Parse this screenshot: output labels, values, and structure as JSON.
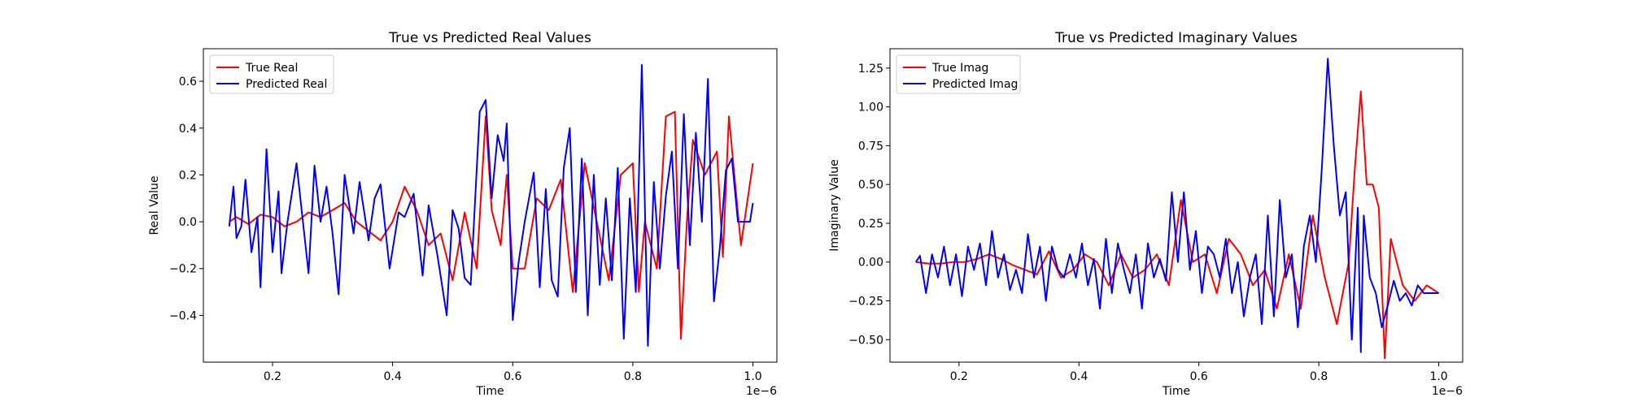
{
  "chart_data": [
    {
      "type": "line",
      "title": "True vs Predicted Real Values",
      "xlabel": "Time",
      "ylabel": "Real Value",
      "x_offset_label": "1e−6",
      "xlim": [
        0.0849,
        1.0399
      ],
      "ylim": [
        -0.5998,
        0.7391
      ],
      "xticks": [
        {
          "v": 0.2,
          "label": "0.2"
        },
        {
          "v": 0.4,
          "label": "0.4"
        },
        {
          "v": 0.6,
          "label": "0.6"
        },
        {
          "v": 0.8,
          "label": "0.8"
        },
        {
          "v": 1.0,
          "label": "1.0"
        }
      ],
      "yticks": [
        {
          "v": -0.4,
          "label": "−0.4"
        },
        {
          "v": -0.2,
          "label": "−0.2"
        },
        {
          "v": 0.0,
          "label": "0.0"
        },
        {
          "v": 0.2,
          "label": "0.2"
        },
        {
          "v": 0.4,
          "label": "0.4"
        },
        {
          "v": 0.6,
          "label": "0.6"
        }
      ],
      "grid": false,
      "legend_position": "upper left",
      "series": [
        {
          "name": "True Real",
          "color": "#ff0000",
          "x": [
            0.128,
            0.14,
            0.16,
            0.18,
            0.2,
            0.22,
            0.24,
            0.26,
            0.28,
            0.3,
            0.32,
            0.34,
            0.36,
            0.38,
            0.4,
            0.42,
            0.44,
            0.46,
            0.48,
            0.5,
            0.52,
            0.54,
            0.555,
            0.565,
            0.58,
            0.59,
            0.6,
            0.62,
            0.64,
            0.66,
            0.68,
            0.7,
            0.72,
            0.74,
            0.76,
            0.78,
            0.8,
            0.81,
            0.82,
            0.84,
            0.855,
            0.87,
            0.88,
            0.89,
            0.9,
            0.92,
            0.94,
            0.95,
            0.96,
            0.98,
            1.0
          ],
          "y": [
            0.0,
            0.02,
            -0.01,
            0.03,
            0.02,
            -0.02,
            0.0,
            0.04,
            0.02,
            0.05,
            0.08,
            0.0,
            -0.04,
            -0.08,
            0.0,
            0.15,
            0.05,
            -0.1,
            -0.05,
            -0.25,
            0.04,
            -0.2,
            0.45,
            0.05,
            -0.1,
            0.2,
            -0.2,
            -0.2,
            0.1,
            0.05,
            0.18,
            -0.3,
            0.25,
            0.0,
            -0.25,
            0.2,
            0.25,
            -0.3,
            0.0,
            -0.2,
            0.45,
            0.47,
            -0.5,
            0.0,
            0.35,
            0.2,
            0.3,
            -0.15,
            0.45,
            -0.1,
            0.25
          ]
        },
        {
          "name": "Predicted Real",
          "color": "#0000ff",
          "x": [
            0.128,
            0.135,
            0.14,
            0.148,
            0.155,
            0.165,
            0.175,
            0.18,
            0.19,
            0.2,
            0.21,
            0.215,
            0.225,
            0.24,
            0.26,
            0.27,
            0.28,
            0.29,
            0.3,
            0.31,
            0.32,
            0.335,
            0.345,
            0.36,
            0.37,
            0.38,
            0.395,
            0.41,
            0.42,
            0.435,
            0.45,
            0.46,
            0.475,
            0.49,
            0.5,
            0.51,
            0.52,
            0.53,
            0.545,
            0.555,
            0.565,
            0.575,
            0.585,
            0.59,
            0.6,
            0.61,
            0.62,
            0.635,
            0.645,
            0.655,
            0.665,
            0.675,
            0.685,
            0.695,
            0.705,
            0.715,
            0.725,
            0.735,
            0.745,
            0.755,
            0.765,
            0.775,
            0.785,
            0.795,
            0.805,
            0.815,
            0.825,
            0.835,
            0.845,
            0.855,
            0.865,
            0.875,
            0.885,
            0.895,
            0.905,
            0.915,
            0.925,
            0.935,
            0.945,
            0.955,
            0.965,
            0.975,
            0.985,
            0.995,
            1.0
          ],
          "y": [
            -0.02,
            0.15,
            -0.07,
            -0.02,
            0.18,
            -0.13,
            0.02,
            -0.28,
            0.31,
            -0.13,
            0.13,
            -0.22,
            0.0,
            0.25,
            -0.22,
            0.24,
            0.0,
            0.15,
            -0.05,
            -0.31,
            0.2,
            -0.05,
            0.17,
            -0.08,
            0.1,
            0.16,
            -0.2,
            0.04,
            0.02,
            0.12,
            -0.23,
            0.07,
            -0.15,
            -0.4,
            0.05,
            -0.03,
            -0.24,
            -0.27,
            0.47,
            0.52,
            0.1,
            0.37,
            0.26,
            0.42,
            -0.42,
            -0.17,
            0.0,
            0.21,
            -0.28,
            0.14,
            -0.25,
            -0.32,
            0.23,
            0.4,
            -0.3,
            0.27,
            -0.4,
            0.2,
            -0.27,
            0.1,
            -0.25,
            0.23,
            -0.5,
            0.1,
            -0.3,
            0.67,
            -0.53,
            0.17,
            -0.2,
            0.11,
            0.3,
            -0.2,
            0.46,
            -0.1,
            0.38,
            0.0,
            0.61,
            -0.34,
            -0.11,
            0.22,
            0.27,
            0.0,
            0.0,
            0.0,
            0.08
          ]
        }
      ]
    },
    {
      "type": "line",
      "title": "True vs Predicted Imaginary Values",
      "xlabel": "Time",
      "ylabel": "Imaginary Value",
      "x_offset_label": "1e−6",
      "xlim": [
        0.0849,
        1.0399
      ],
      "ylim": [
        -0.6449,
        1.3746
      ],
      "xticks": [
        {
          "v": 0.2,
          "label": "0.2"
        },
        {
          "v": 0.4,
          "label": "0.4"
        },
        {
          "v": 0.6,
          "label": "0.6"
        },
        {
          "v": 0.8,
          "label": "0.8"
        },
        {
          "v": 1.0,
          "label": "1.0"
        }
      ],
      "yticks": [
        {
          "v": -0.5,
          "label": "−0.50"
        },
        {
          "v": -0.25,
          "label": "−0.25"
        },
        {
          "v": 0.0,
          "label": "0.00"
        },
        {
          "v": 0.25,
          "label": "0.25"
        },
        {
          "v": 0.5,
          "label": "0.50"
        },
        {
          "v": 0.75,
          "label": "0.75"
        },
        {
          "v": 1.0,
          "label": "1.00"
        },
        {
          "v": 1.25,
          "label": "1.25"
        }
      ],
      "grid": false,
      "legend_position": "upper left",
      "series": [
        {
          "name": "True Imag",
          "color": "#ff0000",
          "x": [
            0.128,
            0.15,
            0.17,
            0.19,
            0.21,
            0.23,
            0.25,
            0.27,
            0.29,
            0.31,
            0.33,
            0.35,
            0.37,
            0.39,
            0.41,
            0.43,
            0.45,
            0.47,
            0.49,
            0.51,
            0.53,
            0.55,
            0.57,
            0.59,
            0.61,
            0.63,
            0.65,
            0.67,
            0.69,
            0.71,
            0.73,
            0.75,
            0.77,
            0.79,
            0.81,
            0.83,
            0.85,
            0.86,
            0.87,
            0.88,
            0.89,
            0.9,
            0.91,
            0.92,
            0.94,
            0.96,
            0.98,
            1.0
          ],
          "y": [
            0.0,
            -0.01,
            -0.01,
            0.0,
            0.0,
            0.02,
            0.05,
            0.02,
            -0.02,
            -0.05,
            -0.08,
            0.07,
            -0.1,
            -0.05,
            0.05,
            0.0,
            -0.15,
            0.05,
            -0.1,
            -0.05,
            0.05,
            -0.15,
            0.4,
            0.0,
            0.05,
            -0.2,
            0.15,
            0.05,
            -0.15,
            -0.05,
            -0.3,
            0.05,
            -0.3,
            0.3,
            -0.1,
            -0.4,
            0.0,
            0.6,
            1.1,
            0.5,
            0.5,
            0.35,
            -0.62,
            0.15,
            -0.15,
            -0.25,
            -0.15,
            -0.2
          ]
        },
        {
          "name": "Predicted Imag",
          "color": "#0000ff",
          "x": [
            0.128,
            0.135,
            0.145,
            0.155,
            0.165,
            0.175,
            0.185,
            0.195,
            0.205,
            0.215,
            0.225,
            0.235,
            0.245,
            0.255,
            0.265,
            0.275,
            0.285,
            0.295,
            0.305,
            0.315,
            0.325,
            0.335,
            0.345,
            0.355,
            0.365,
            0.375,
            0.385,
            0.395,
            0.405,
            0.415,
            0.425,
            0.435,
            0.445,
            0.455,
            0.465,
            0.475,
            0.485,
            0.495,
            0.505,
            0.515,
            0.525,
            0.535,
            0.545,
            0.555,
            0.565,
            0.575,
            0.585,
            0.595,
            0.605,
            0.615,
            0.625,
            0.635,
            0.645,
            0.655,
            0.665,
            0.675,
            0.685,
            0.695,
            0.705,
            0.715,
            0.725,
            0.735,
            0.745,
            0.755,
            0.765,
            0.775,
            0.785,
            0.795,
            0.805,
            0.815,
            0.825,
            0.835,
            0.845,
            0.855,
            0.865,
            0.87,
            0.875,
            0.885,
            0.895,
            0.905,
            0.915,
            0.925,
            0.935,
            0.945,
            0.955,
            0.965,
            0.975,
            0.985,
            0.995,
            1.0
          ],
          "y": [
            0.0,
            0.04,
            -0.2,
            0.05,
            -0.1,
            0.1,
            -0.15,
            0.05,
            -0.22,
            0.1,
            -0.05,
            0.12,
            -0.15,
            0.2,
            -0.1,
            0.05,
            -0.18,
            -0.05,
            -0.2,
            0.18,
            -0.1,
            0.1,
            -0.25,
            0.1,
            -0.05,
            -0.1,
            0.05,
            -0.1,
            0.12,
            -0.15,
            0.02,
            -0.3,
            0.15,
            -0.2,
            0.12,
            -0.05,
            -0.2,
            0.05,
            -0.3,
            0.12,
            -0.1,
            0.02,
            -0.12,
            0.45,
            0.0,
            0.45,
            -0.05,
            0.2,
            -0.2,
            0.1,
            0.05,
            -0.1,
            0.15,
            -0.2,
            0.0,
            -0.35,
            -0.1,
            0.05,
            -0.4,
            0.3,
            -0.35,
            0.4,
            -0.1,
            0.05,
            -0.42,
            0.1,
            0.3,
            0.0,
            0.6,
            1.31,
            0.75,
            0.3,
            0.45,
            -0.5,
            0.35,
            -0.58,
            0.3,
            -0.1,
            -0.2,
            -0.42,
            -0.28,
            -0.12,
            -0.25,
            -0.2,
            -0.28,
            -0.15,
            -0.2,
            -0.2,
            -0.2,
            -0.2
          ]
        }
      ]
    }
  ]
}
